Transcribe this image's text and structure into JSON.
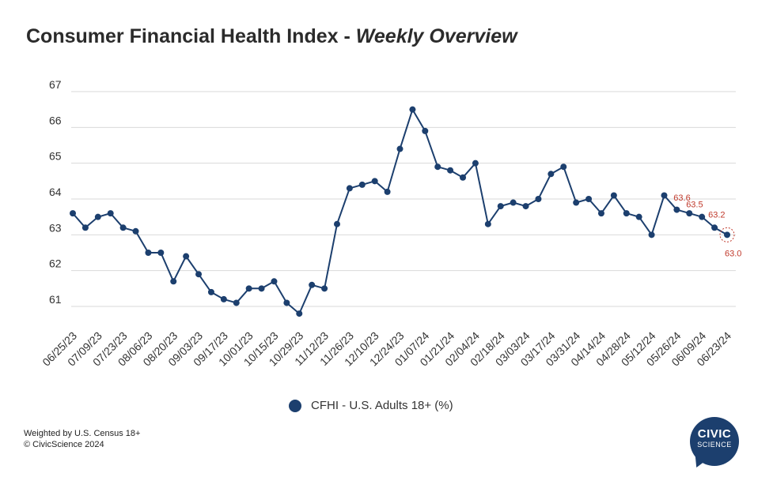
{
  "header": {
    "title_main": "Consumer Financial Health Index - ",
    "title_sub": "Weekly Overview"
  },
  "legend": {
    "label": "CFHI - U.S. Adults 18+ (%)"
  },
  "footnote": {
    "line1": "Weighted by U.S. Census 18+",
    "line2": "© CivicScience 2024"
  },
  "logo": {
    "line1": "CIVIC",
    "line2": "SCIENCE"
  },
  "colors": {
    "series": "#1c3f6e",
    "labels": "#c0392b",
    "grid": "#d9d9d9"
  },
  "chart_data": {
    "type": "line",
    "title": "Consumer Financial Health Index - Weekly Overview",
    "ylim": [
      60.75,
      67
    ],
    "yticks": [
      67,
      66,
      65,
      64,
      63,
      62,
      61
    ],
    "grid": true,
    "legend_position": "bottom-center",
    "x_tick_labels": [
      "06/25/23",
      "07/09/23",
      "07/23/23",
      "08/06/23",
      "08/20/23",
      "09/03/23",
      "09/17/23",
      "10/01/23",
      "10/15/23",
      "10/29/23",
      "11/12/23",
      "11/26/23",
      "12/10/23",
      "12/24/23",
      "01/07/24",
      "01/21/24",
      "02/04/24",
      "02/18/24",
      "03/03/24",
      "03/17/24",
      "03/31/24",
      "04/14/24",
      "04/28/24",
      "05/12/24",
      "05/26/24",
      "06/09/24",
      "06/23/24"
    ],
    "series": [
      {
        "name": "CFHI - U.S. Adults 18+ (%)",
        "values": [
          63.6,
          63.2,
          63.5,
          63.6,
          63.2,
          63.1,
          62.5,
          62.5,
          61.7,
          62.4,
          61.9,
          61.4,
          61.2,
          61.1,
          61.5,
          61.5,
          61.7,
          61.1,
          60.8,
          61.6,
          61.5,
          63.3,
          64.3,
          64.4,
          64.5,
          64.2,
          65.4,
          66.5,
          65.9,
          64.9,
          64.8,
          64.6,
          65.0,
          63.3,
          63.8,
          63.9,
          63.8,
          64.0,
          64.7,
          64.9,
          63.9,
          64.0,
          63.6,
          64.1,
          63.6,
          63.5,
          63.0,
          64.1,
          63.7,
          63.6,
          63.5,
          63.2,
          63.0
        ]
      }
    ],
    "data_labels": [
      {
        "index": 49,
        "text": "63.6"
      },
      {
        "index": 50,
        "text": "63.5"
      },
      {
        "index": 51,
        "text": "63.2"
      },
      {
        "index": 52,
        "text": "63.0"
      }
    ]
  }
}
